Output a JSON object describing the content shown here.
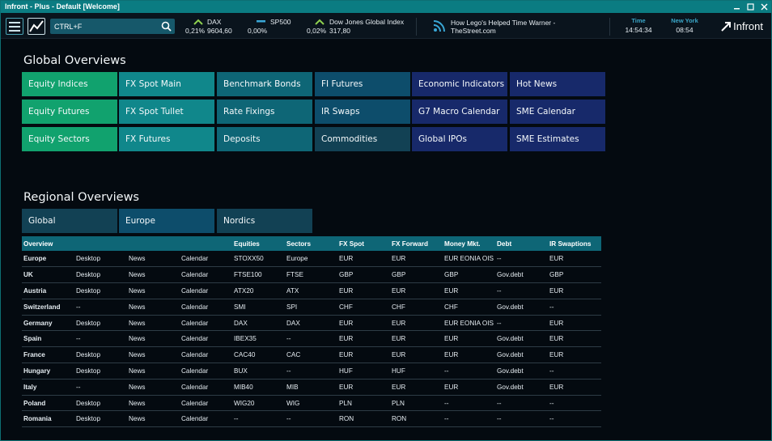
{
  "window": {
    "title": "Infront - Plus - Default [Welcome]",
    "controls": [
      "minimize",
      "maximize",
      "close"
    ]
  },
  "toolbar": {
    "search_value": "CTRL+F",
    "tickers": [
      {
        "name": "DAX",
        "change": "0,21%",
        "value": "9604,60",
        "trend": "up"
      },
      {
        "name": "SP500",
        "change": "0,00%",
        "value": "",
        "trend": "flat"
      },
      {
        "name": "Dow Jones Global Index",
        "change": "0,02%",
        "value": "317,80",
        "trend": "up"
      }
    ],
    "news": {
      "line1": "How Lego's Helped Time Warner -",
      "line2": "TheStreet.com"
    },
    "clocks": [
      {
        "label": "Time",
        "value": "14:54:34"
      },
      {
        "label": "New York",
        "value": "08:54"
      }
    ],
    "brand": "Infront"
  },
  "global": {
    "title": "Global Overviews",
    "tiles": [
      [
        "Equity Indices",
        "FX Spot Main",
        "Benchmark Bonds",
        "FI Futures",
        "Economic Indicators",
        "Hot News"
      ],
      [
        "Equity Futures",
        "FX Spot Tullet",
        "Rate Fixings",
        "IR Swaps",
        "G7 Macro Calendar",
        "SME Calendar"
      ],
      [
        "Equity Sectors",
        "FX Futures",
        "Deposits",
        "Commodities",
        "Global IPOs",
        "SME Estimates"
      ]
    ]
  },
  "regional": {
    "title": "Regional Overviews",
    "tabs": [
      "Global",
      "Europe",
      "Nordics"
    ],
    "columns": [
      "Overview",
      "",
      "",
      "",
      "Equities",
      "Sectors",
      "FX Spot",
      "FX Forward",
      "Money Mkt.",
      "Debt",
      "IR Swaptions"
    ],
    "rows": [
      [
        "Europe",
        "Desktop",
        "News",
        "Calendar",
        "STOXX50",
        "Europe",
        "EUR",
        "EUR",
        "EUR   EONIA OIS",
        "--",
        "EUR"
      ],
      [
        "UK",
        "Desktop",
        "News",
        "Calendar",
        "FTSE100",
        "FTSE",
        "GBP",
        "GBP",
        "GBP",
        "Gov.debt",
        "GBP"
      ],
      [
        "Austria",
        "Desktop",
        "News",
        "Calendar",
        "ATX20",
        "ATX",
        "EUR",
        "EUR",
        "EUR",
        "--",
        "EUR"
      ],
      [
        "Switzerland",
        "--",
        "News",
        "Calendar",
        "SMI",
        "SPI",
        "CHF",
        "CHF",
        "CHF",
        "Gov.debt",
        "--"
      ],
      [
        "Germany",
        "Desktop",
        "News",
        "Calendar",
        "DAX",
        "DAX",
        "EUR",
        "EUR",
        "EUR   EONIA OIS",
        "--",
        "EUR"
      ],
      [
        "Spain",
        "--",
        "News",
        "Calendar",
        "IBEX35",
        "--",
        "EUR",
        "EUR",
        "EUR",
        "Gov.debt",
        "EUR"
      ],
      [
        "France",
        "Desktop",
        "News",
        "Calendar",
        "CAC40",
        "CAC",
        "EUR",
        "EUR",
        "EUR",
        "Gov.debt",
        "EUR"
      ],
      [
        "Hungary",
        "Desktop",
        "News",
        "Calendar",
        "BUX",
        "--",
        "HUF",
        "HUF",
        "--",
        "Gov.debt",
        "--"
      ],
      [
        "Italy",
        "--",
        "News",
        "Calendar",
        "MIB40",
        "MIB",
        "EUR",
        "EUR",
        "EUR",
        "Gov.debt",
        "EUR"
      ],
      [
        "Poland",
        "Desktop",
        "News",
        "Calendar",
        "WIG20",
        "WIG",
        "PLN",
        "PLN",
        "--",
        "--",
        "--"
      ],
      [
        "Romania",
        "Desktop",
        "News",
        "Calendar",
        "--",
        "--",
        "RON",
        "RON",
        "--",
        "--",
        "--"
      ]
    ]
  },
  "colors": {
    "green": "#11a26e",
    "teal": "#10878b",
    "teal_dark": "#0e6676",
    "blue": "#0d4d6b",
    "navy": "#17296a",
    "background": "#040a10"
  }
}
